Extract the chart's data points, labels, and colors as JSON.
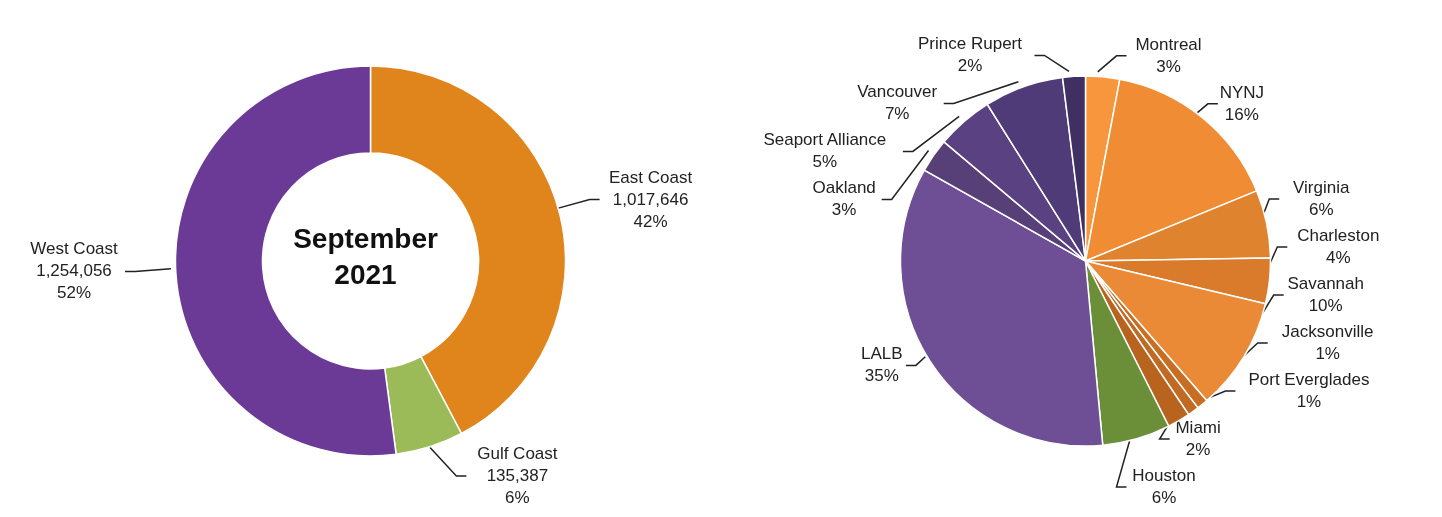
{
  "chart_data": [
    {
      "type": "donut",
      "title": "September 2021",
      "categories": [
        "East Coast",
        "Gulf Coast",
        "West Coast"
      ],
      "values": [
        1017646,
        135387,
        1254056
      ],
      "colors": [
        "#e0841c",
        "#9bbb59",
        "#6b3a96"
      ],
      "value_labels": [
        "1,017,646\n42%",
        "135,387\n6%",
        "1,254,056\n52%"
      ]
    },
    {
      "type": "pie",
      "categories": [
        "Montreal",
        "NYNJ",
        "Virginia",
        "Charleston",
        "Savannah",
        "Jacksonville",
        "Port Everglades",
        "Miami",
        "Houston",
        "LALB",
        "Oakland",
        "Seaport Alliance",
        "Vancouver",
        "Prince Rupert"
      ],
      "values": [
        3,
        16,
        6,
        4,
        10,
        1,
        1,
        2,
        6,
        35,
        3,
        5,
        7,
        2
      ],
      "colors": [
        "#f7963c",
        "#ef8c34",
        "#e0832e",
        "#d97b2a",
        "#ea8a36",
        "#c86e22",
        "#c06a24",
        "#b8641f",
        "#6a8f38",
        "#6e4f96",
        "#574077",
        "#5a4282",
        "#4f3b78",
        "#3f2f63"
      ],
      "value_labels": [
        "3%",
        "16%",
        "6%",
        "4%",
        "10%",
        "1%",
        "1%",
        "2%",
        "6%",
        "35%",
        "3%",
        "5%",
        "7%",
        "2%"
      ]
    }
  ]
}
